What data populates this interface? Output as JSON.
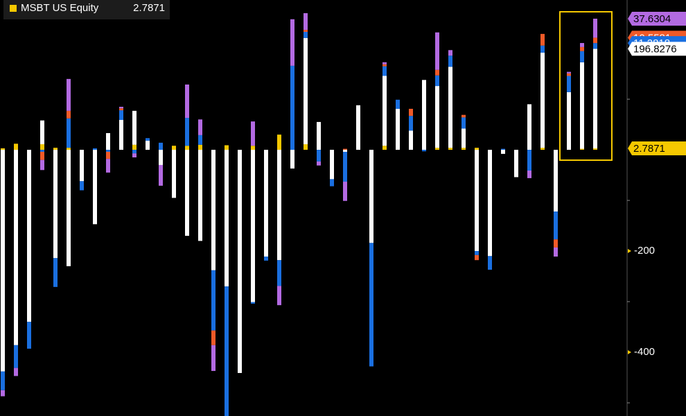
{
  "chart_data": {
    "type": "stacked-bar",
    "ylim": [
      -526,
      296
    ],
    "yticks": [
      -400,
      -200
    ],
    "minor_yticks": [
      -500,
      -300,
      -100,
      100
    ],
    "series": [
      {
        "name": "MSBT US Equity",
        "color": "#f5c800",
        "values": [
          3,
          12,
          0,
          11,
          4,
          4,
          0,
          0,
          0,
          0,
          10,
          0,
          0,
          8,
          8,
          10,
          0,
          9,
          0,
          8,
          0,
          30,
          0,
          11,
          0,
          0,
          0,
          0,
          0,
          8,
          0,
          0,
          0,
          4,
          4,
          4,
          4,
          0,
          0,
          0,
          0,
          4,
          0,
          0,
          2,
          2.7871
        ]
      },
      {
        "color": "#ffffff",
        "values": [
          -438,
          -386,
          -340,
          47,
          -214,
          -230,
          -62,
          -147,
          33,
          59,
          67,
          18,
          -30,
          -95,
          -170,
          -180,
          -238,
          -270,
          -441,
          -301,
          -211,
          -218,
          -37,
          210,
          55,
          -58,
          -4,
          88,
          -184,
          138,
          81,
          38,
          138,
          122,
          160,
          38,
          -200,
          -210,
          -8,
          -54,
          90,
          188,
          -122,
          114,
          171,
          196.8276
        ]
      },
      {
        "color": "#1a6fe0",
        "values": [
          -37,
          -45,
          -53,
          -4,
          -57,
          58,
          -18,
          3,
          -4,
          19,
          -7,
          5,
          14,
          0,
          55,
          19,
          -119,
          -263,
          0,
          -3,
          -8,
          -51,
          166,
          12,
          -23,
          -14,
          -59,
          0,
          -244,
          19,
          18,
          29,
          -3,
          21,
          22,
          22,
          -8,
          -27,
          2,
          0,
          -41,
          14,
          -55,
          32,
          22,
          11.2818
        ]
      },
      {
        "color": "#f05a28",
        "values": [
          0,
          0,
          0,
          -16,
          0,
          15,
          0,
          0,
          -14,
          4,
          0,
          0,
          0,
          0,
          0,
          0,
          -29,
          0,
          0,
          0,
          0,
          0,
          0,
          4,
          0,
          0,
          2,
          0,
          0,
          4,
          0,
          14,
          0,
          11,
          0,
          5,
          -10,
          0,
          0,
          0,
          0,
          23,
          -16,
          5,
          8,
          10.5581
        ]
      },
      {
        "color": "#b36ae2",
        "values": [
          -12,
          -16,
          0,
          -20,
          0,
          63,
          0,
          0,
          -27,
          3,
          -8,
          0,
          -41,
          0,
          66,
          31,
          -51,
          0,
          0,
          48,
          0,
          -38,
          92,
          33,
          -8,
          0,
          -38,
          0,
          0,
          4,
          0,
          0,
          0,
          74,
          11,
          0,
          0,
          0,
          0,
          0,
          -15,
          0,
          -18,
          3,
          8,
          37.6304
        ]
      }
    ]
  }
}
